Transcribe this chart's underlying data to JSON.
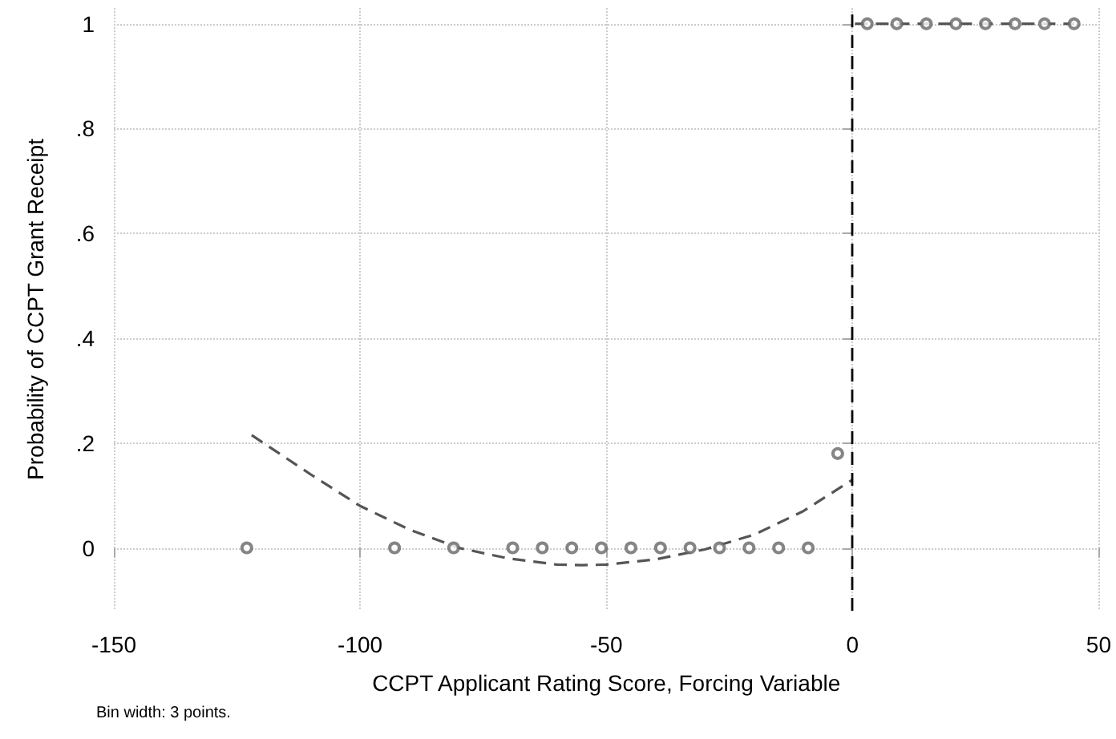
{
  "chart_data": {
    "type": "scatter",
    "xlabel": "CCPT Applicant Rating Score, Forcing Variable",
    "ylabel": "Probability of CCPT Grant Receipt",
    "xlim": [
      -150,
      50
    ],
    "xticks": [
      -150,
      -100,
      -50,
      0,
      50
    ],
    "ylim": [
      -0.12,
      1.03
    ],
    "yticks": [
      {
        "value": 0,
        "label": "0"
      },
      {
        "value": 0.2,
        "label": ".2"
      },
      {
        "value": 0.4,
        "label": ".4"
      },
      {
        "value": 0.6,
        "label": ".6"
      },
      {
        "value": 0.8,
        "label": ".8"
      },
      {
        "value": 1,
        "label": "1"
      }
    ],
    "grid": true,
    "marker": "circle",
    "series": [
      {
        "color": "#666666",
        "x": [
          -123,
          -93,
          -81,
          -69,
          -63,
          -57,
          -51,
          -45,
          -39,
          -33,
          -27,
          -21,
          -15,
          -9,
          -3
        ],
        "values": [
          0,
          0,
          0,
          0,
          0,
          0,
          0,
          0,
          0,
          0,
          0,
          0,
          0,
          0,
          0.18
        ]
      },
      {
        "color": "#666666",
        "x": [
          3,
          9,
          15,
          21,
          27,
          33,
          39,
          45
        ],
        "values": [
          1,
          1,
          1,
          1,
          1,
          1,
          1,
          1
        ]
      },
      {
        "type": "line",
        "color": "#555555",
        "line_style": "dashed",
        "marker": "none",
        "x": [
          -122,
          -110,
          -100,
          -90,
          -80,
          -70,
          -60,
          -55,
          -50,
          -40,
          -30,
          -20,
          -10,
          0
        ],
        "values": [
          0.215,
          0.14,
          0.08,
          0.035,
          0.0,
          -0.02,
          -0.032,
          -0.033,
          -0.032,
          -0.022,
          -0.003,
          0.025,
          0.07,
          0.13
        ]
      },
      {
        "type": "line",
        "color": "#555555",
        "line_style": "dashed",
        "marker": "none",
        "x": [
          0.5,
          45
        ],
        "values": [
          1,
          1
        ]
      }
    ],
    "ref_lines": [
      {
        "axis": "x",
        "value": 0,
        "color": "#000000",
        "line_style": "dashed"
      }
    ],
    "annotations": [
      "Bin width: 3 points."
    ]
  }
}
